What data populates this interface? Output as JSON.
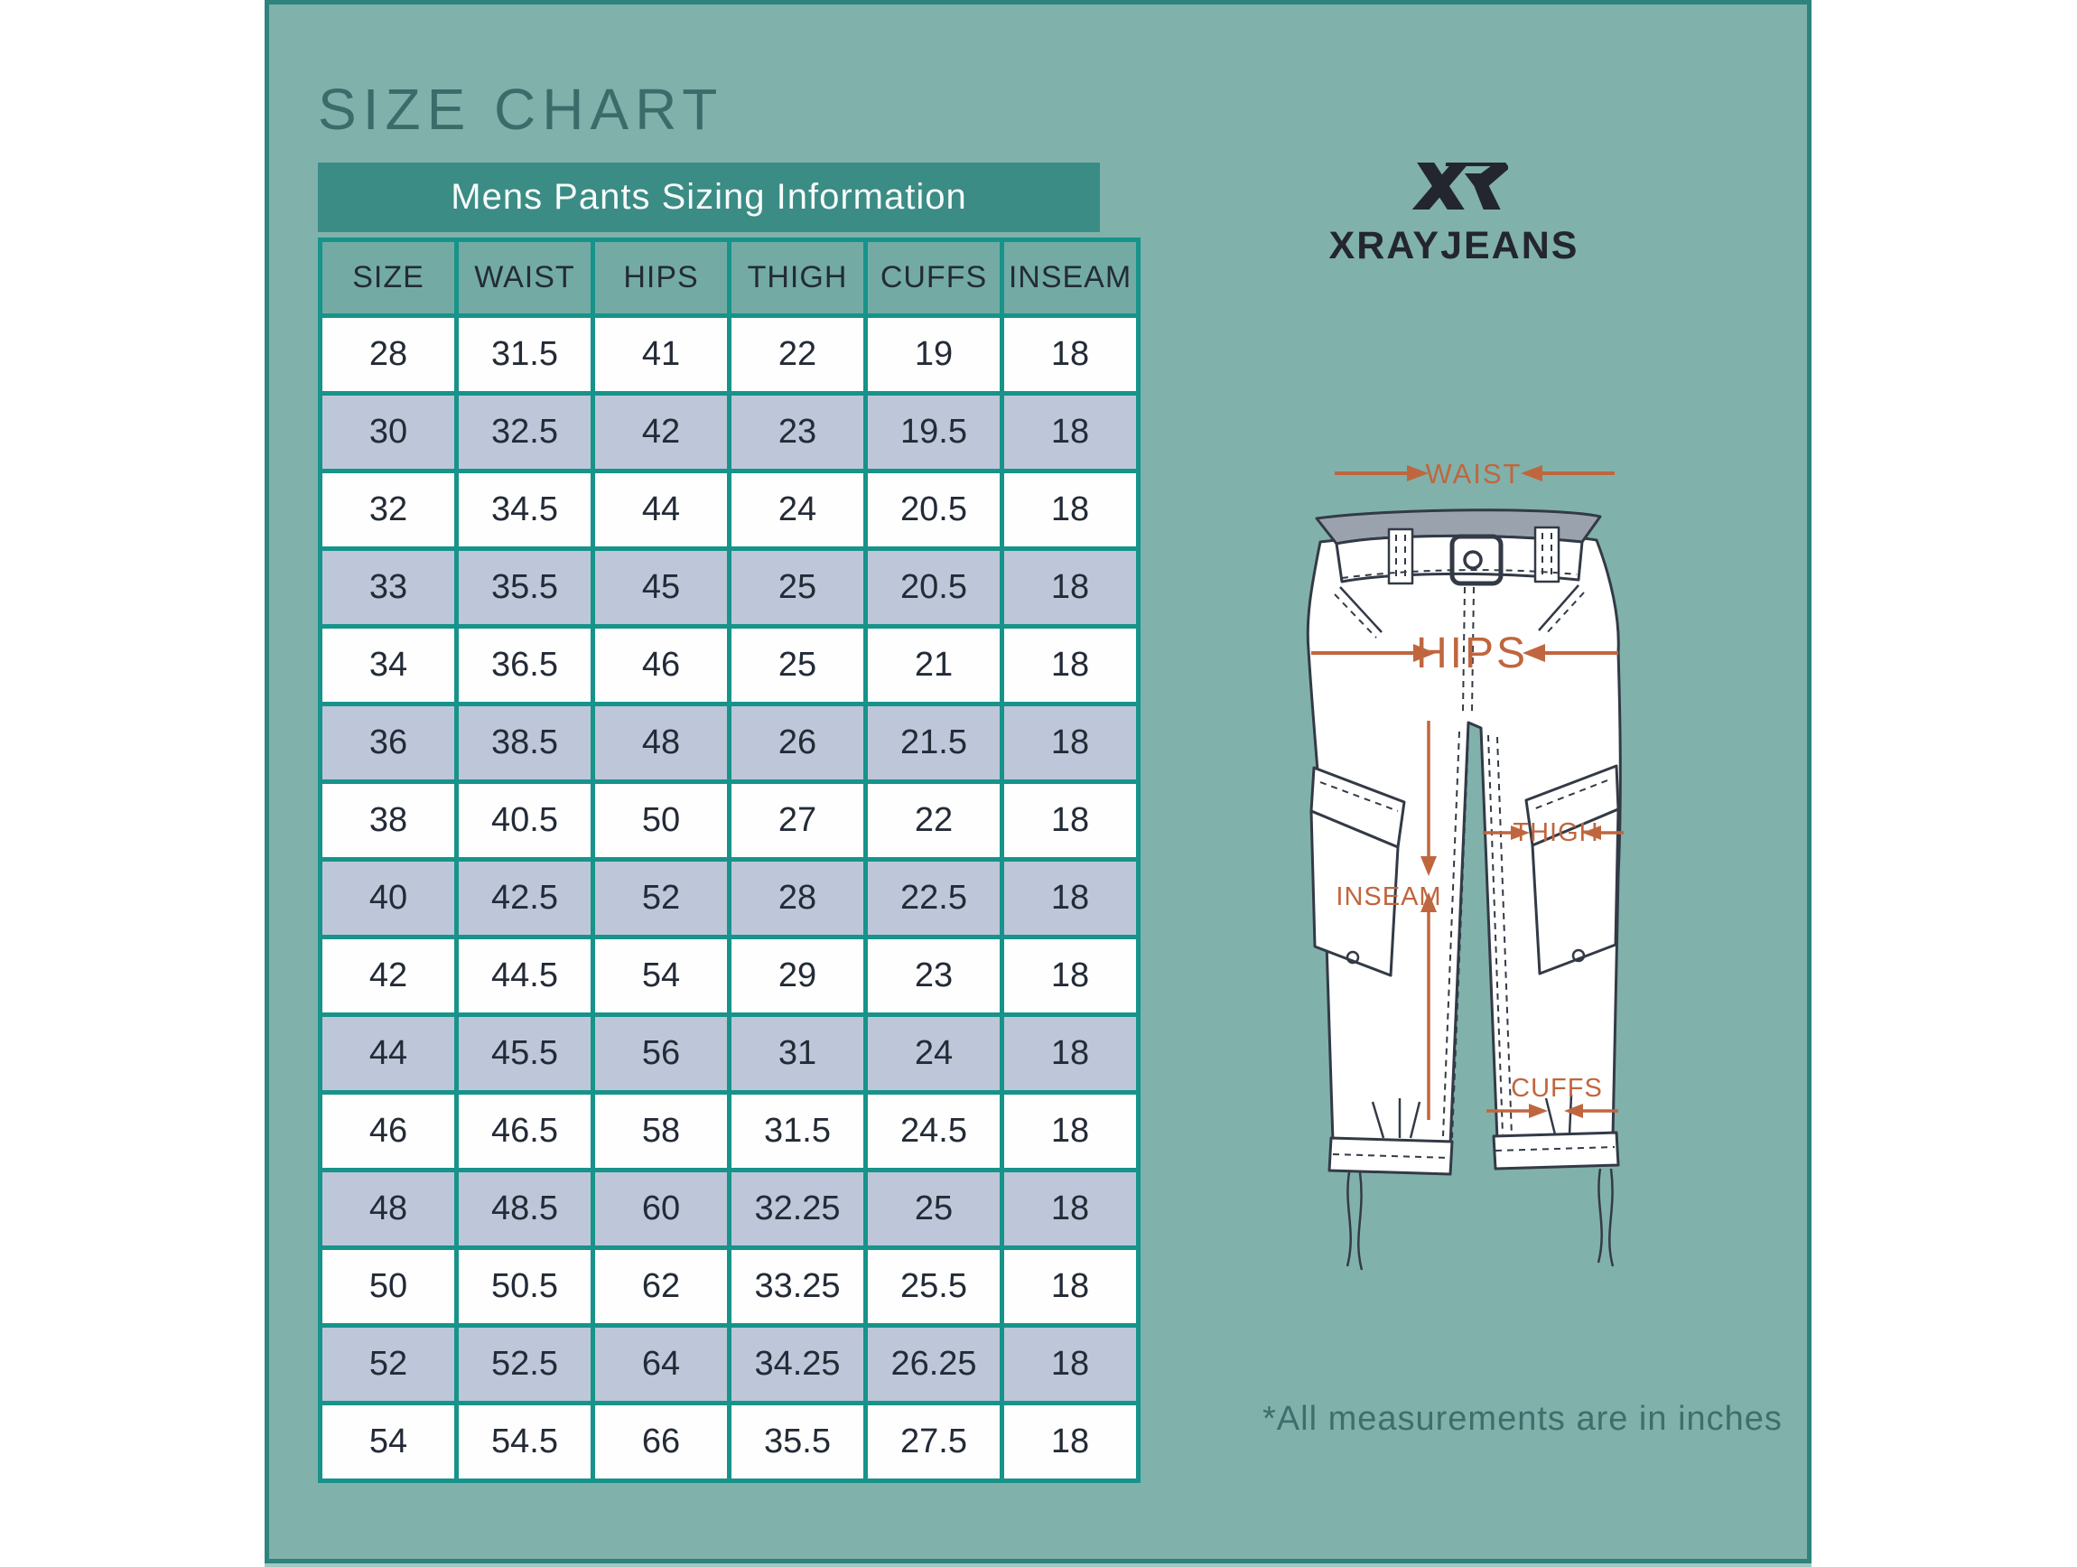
{
  "page": {
    "title": "SIZE CHART",
    "footnote": "*All measurements are in inches"
  },
  "logo": {
    "monogram": "XR",
    "brand": "XRAYJEANS"
  },
  "table": {
    "caption": "Mens Pants Sizing Information",
    "columns": [
      "SIZE",
      "WAIST",
      "HIPS",
      "THIGH",
      "CUFFS",
      "INSEAM"
    ],
    "rows": [
      [
        "28",
        "31.5",
        "41",
        "22",
        "19",
        "18"
      ],
      [
        "30",
        "32.5",
        "42",
        "23",
        "19.5",
        "18"
      ],
      [
        "32",
        "34.5",
        "44",
        "24",
        "20.5",
        "18"
      ],
      [
        "33",
        "35.5",
        "45",
        "25",
        "20.5",
        "18"
      ],
      [
        "34",
        "36.5",
        "46",
        "25",
        "21",
        "18"
      ],
      [
        "36",
        "38.5",
        "48",
        "26",
        "21.5",
        "18"
      ],
      [
        "38",
        "40.5",
        "50",
        "27",
        "22",
        "18"
      ],
      [
        "40",
        "42.5",
        "52",
        "28",
        "22.5",
        "18"
      ],
      [
        "42",
        "44.5",
        "54",
        "29",
        "23",
        "18"
      ],
      [
        "44",
        "45.5",
        "56",
        "31",
        "24",
        "18"
      ],
      [
        "46",
        "46.5",
        "58",
        "31.5",
        "24.5",
        "18"
      ],
      [
        "48",
        "48.5",
        "60",
        "32.25",
        "25",
        "18"
      ],
      [
        "50",
        "50.5",
        "62",
        "33.25",
        "25.5",
        "18"
      ],
      [
        "52",
        "52.5",
        "64",
        "34.25",
        "26.25",
        "18"
      ],
      [
        "54",
        "54.5",
        "66",
        "35.5",
        "27.5",
        "18"
      ]
    ]
  },
  "diagram": {
    "labels": {
      "waist": "WAIST",
      "hips": "HIPS",
      "thigh": "THIGH",
      "inseam": "INSEAM",
      "cuffs": "CUFFS"
    }
  },
  "colors": {
    "panel_background": "#81b1ab",
    "panel_edge": "#2e837d",
    "caption_bar": "#3a8c85",
    "table_border": "#17938a",
    "header_cell": "#73aba4",
    "row_alt": "#bdc7d9",
    "text_dark": "#232b37",
    "title_text": "#3c6c6a",
    "measure_orange": "#c0663e",
    "logo_navy": "#23262f"
  }
}
